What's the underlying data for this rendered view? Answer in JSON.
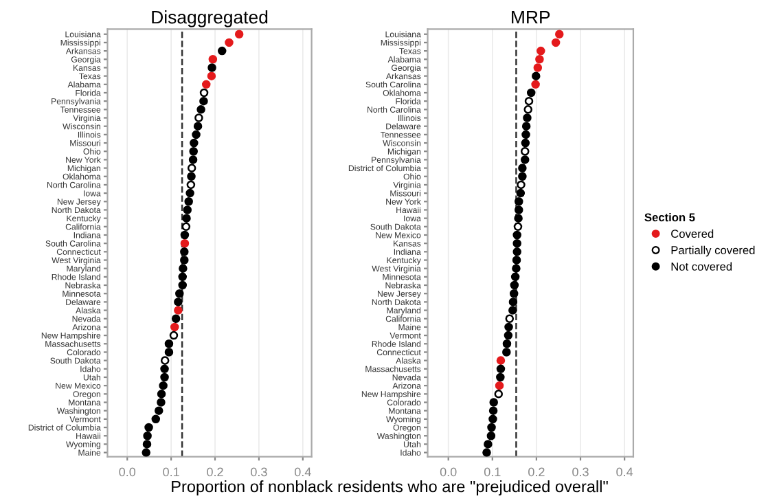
{
  "chart_data": [
    {
      "type": "scatter",
      "title": "Disaggregated",
      "xlabel": "Proportion of nonblack residents who are \"prejudiced overall\"",
      "categories": [
        "Louisiana",
        "Mississippi",
        "Arkansas",
        "Georgia",
        "Kansas",
        "Texas",
        "Alabama",
        "Florida",
        "Pennsylvania",
        "Tennessee",
        "Virginia",
        "Wisconsin",
        "Illinois",
        "Missouri",
        "Ohio",
        "New York",
        "Michigan",
        "Oklahoma",
        "North Carolina",
        "Iowa",
        "New Jersey",
        "North Dakota",
        "Kentucky",
        "California",
        "Indiana",
        "South Carolina",
        "Connecticut",
        "West Virginia",
        "Maryland",
        "Rhode Island",
        "Nebraska",
        "Minnesota",
        "Delaware",
        "Alaska",
        "Nevada",
        "Arizona",
        "New Hampshire",
        "Massachusetts",
        "Colorado",
        "South Dakota",
        "Idaho",
        "Utah",
        "New Mexico",
        "Oregon",
        "Montana",
        "Washington",
        "Vermont",
        "District of Columbia",
        "Hawaii",
        "Wyoming",
        "Maine"
      ],
      "series": [
        {
          "color": "#e41a1c",
          "values": [
            0.255,
            0.232,
            null,
            0.195,
            null,
            0.192,
            0.18,
            null,
            null,
            null,
            null,
            null,
            null,
            null,
            null,
            null,
            null,
            null,
            null,
            null,
            null,
            null,
            null,
            null,
            null,
            0.131,
            null,
            null,
            null,
            null,
            null,
            null,
            null,
            0.116,
            null,
            0.108,
            null,
            null,
            null,
            null,
            null,
            null,
            null,
            null,
            null,
            null,
            null,
            null,
            null,
            null,
            null
          ]
        },
        {
          "color": "#ffffff",
          "values": [
            null,
            null,
            null,
            null,
            null,
            null,
            null,
            0.175,
            null,
            null,
            0.163,
            null,
            null,
            null,
            null,
            null,
            0.147,
            null,
            0.145,
            null,
            null,
            null,
            null,
            0.134,
            null,
            null,
            null,
            null,
            null,
            null,
            null,
            null,
            null,
            null,
            null,
            null,
            0.106,
            null,
            null,
            0.086,
            null,
            null,
            null,
            null,
            null,
            null,
            null,
            null,
            null,
            null,
            null
          ]
        },
        {
          "color": "#000000",
          "values": [
            null,
            null,
            0.216,
            null,
            0.193,
            null,
            null,
            null,
            0.174,
            0.168,
            null,
            0.161,
            0.157,
            0.152,
            0.151,
            0.15,
            null,
            0.146,
            null,
            0.143,
            0.14,
            0.137,
            0.135,
            null,
            0.131,
            null,
            0.13,
            0.13,
            0.127,
            0.126,
            0.126,
            0.119,
            0.116,
            null,
            0.111,
            null,
            null,
            0.095,
            0.095,
            null,
            0.085,
            0.085,
            0.082,
            0.078,
            0.077,
            0.072,
            0.065,
            0.049,
            0.046,
            0.045,
            0.043
          ]
        }
      ],
      "orientation": "horizontal",
      "xlim": [
        -0.045,
        0.42
      ],
      "xticks": [
        {
          "value": 0.0,
          "label": "0.0"
        },
        {
          "value": 0.1,
          "label": "0.1"
        },
        {
          "value": 0.2,
          "label": "0.2"
        },
        {
          "value": 0.3,
          "label": "0.3"
        },
        {
          "value": 0.4,
          "label": "0.4"
        }
      ],
      "ref_lines": [
        {
          "axis": "x",
          "value": 0.125,
          "line_style": "dashed",
          "color": "#333333"
        }
      ],
      "grid": "x",
      "marker": "circle",
      "legend": false
    },
    {
      "type": "scatter",
      "title": "MRP",
      "legend_title": "Section 5",
      "categories": [
        "Louisiana",
        "Mississippi",
        "Texas",
        "Alabama",
        "Georgia",
        "Arkansas",
        "South Carolina",
        "Oklahoma",
        "Florida",
        "North Carolina",
        "Illinois",
        "Delaware",
        "Tennessee",
        "Wisconsin",
        "Michigan",
        "Pennsylvania",
        "District of Columbia",
        "Ohio",
        "Virginia",
        "Missouri",
        "New York",
        "Hawaii",
        "Iowa",
        "South Dakota",
        "New Mexico",
        "Kansas",
        "Indiana",
        "Kentucky",
        "West Virginia",
        "Minnesota",
        "Nebraska",
        "New Jersey",
        "North Dakota",
        "Maryland",
        "California",
        "Maine",
        "Vermont",
        "Rhode Island",
        "Connecticut",
        "Alaska",
        "Massachusetts",
        "Nevada",
        "Arizona",
        "New Hampshire",
        "Colorado",
        "Montana",
        "Wyoming",
        "Oregon",
        "Washington",
        "Utah",
        "Idaho"
      ],
      "series": [
        {
          "name": "Covered",
          "color": "#e41a1c",
          "values": [
            0.252,
            0.244,
            0.21,
            0.207,
            0.203,
            null,
            0.198,
            null,
            null,
            null,
            null,
            null,
            null,
            null,
            null,
            null,
            null,
            null,
            null,
            null,
            null,
            null,
            null,
            null,
            null,
            null,
            null,
            null,
            null,
            null,
            null,
            null,
            null,
            null,
            null,
            null,
            null,
            null,
            null,
            0.119,
            null,
            null,
            0.116,
            null,
            null,
            null,
            null,
            null,
            null,
            null,
            null
          ]
        },
        {
          "name": "Partially covered",
          "color": "#ffffff",
          "values": [
            null,
            null,
            null,
            null,
            null,
            null,
            null,
            null,
            0.183,
            0.181,
            null,
            null,
            null,
            null,
            0.174,
            null,
            null,
            null,
            0.165,
            null,
            null,
            null,
            null,
            0.158,
            null,
            null,
            null,
            null,
            null,
            null,
            null,
            null,
            null,
            null,
            0.139,
            null,
            null,
            null,
            null,
            null,
            null,
            null,
            null,
            0.114,
            null,
            null,
            null,
            null,
            null,
            null,
            null
          ]
        },
        {
          "name": "Not covered",
          "color": "#000000",
          "values": [
            null,
            null,
            null,
            null,
            null,
            0.199,
            null,
            0.188,
            null,
            null,
            0.179,
            0.177,
            0.176,
            0.175,
            null,
            0.174,
            0.168,
            0.168,
            null,
            0.164,
            0.16,
            0.16,
            0.159,
            null,
            0.156,
            0.156,
            0.156,
            0.155,
            0.154,
            0.152,
            0.15,
            0.149,
            0.147,
            0.146,
            null,
            0.137,
            0.136,
            0.133,
            0.132,
            null,
            0.119,
            0.118,
            null,
            null,
            0.103,
            0.102,
            0.101,
            0.098,
            0.097,
            0.09,
            0.087
          ]
        }
      ],
      "orientation": "horizontal",
      "xlim": [
        -0.047,
        0.42
      ],
      "xticks": [
        {
          "value": 0.0,
          "label": "0.0"
        },
        {
          "value": 0.1,
          "label": "0.1"
        },
        {
          "value": 0.2,
          "label": "0.2"
        },
        {
          "value": 0.3,
          "label": "0.3"
        },
        {
          "value": 0.4,
          "label": "0.4"
        }
      ],
      "ref_lines": [
        {
          "axis": "x",
          "value": 0.154,
          "line_style": "dashed",
          "color": "#333333"
        }
      ],
      "grid": "x",
      "marker": "circle",
      "legend": "right"
    }
  ]
}
